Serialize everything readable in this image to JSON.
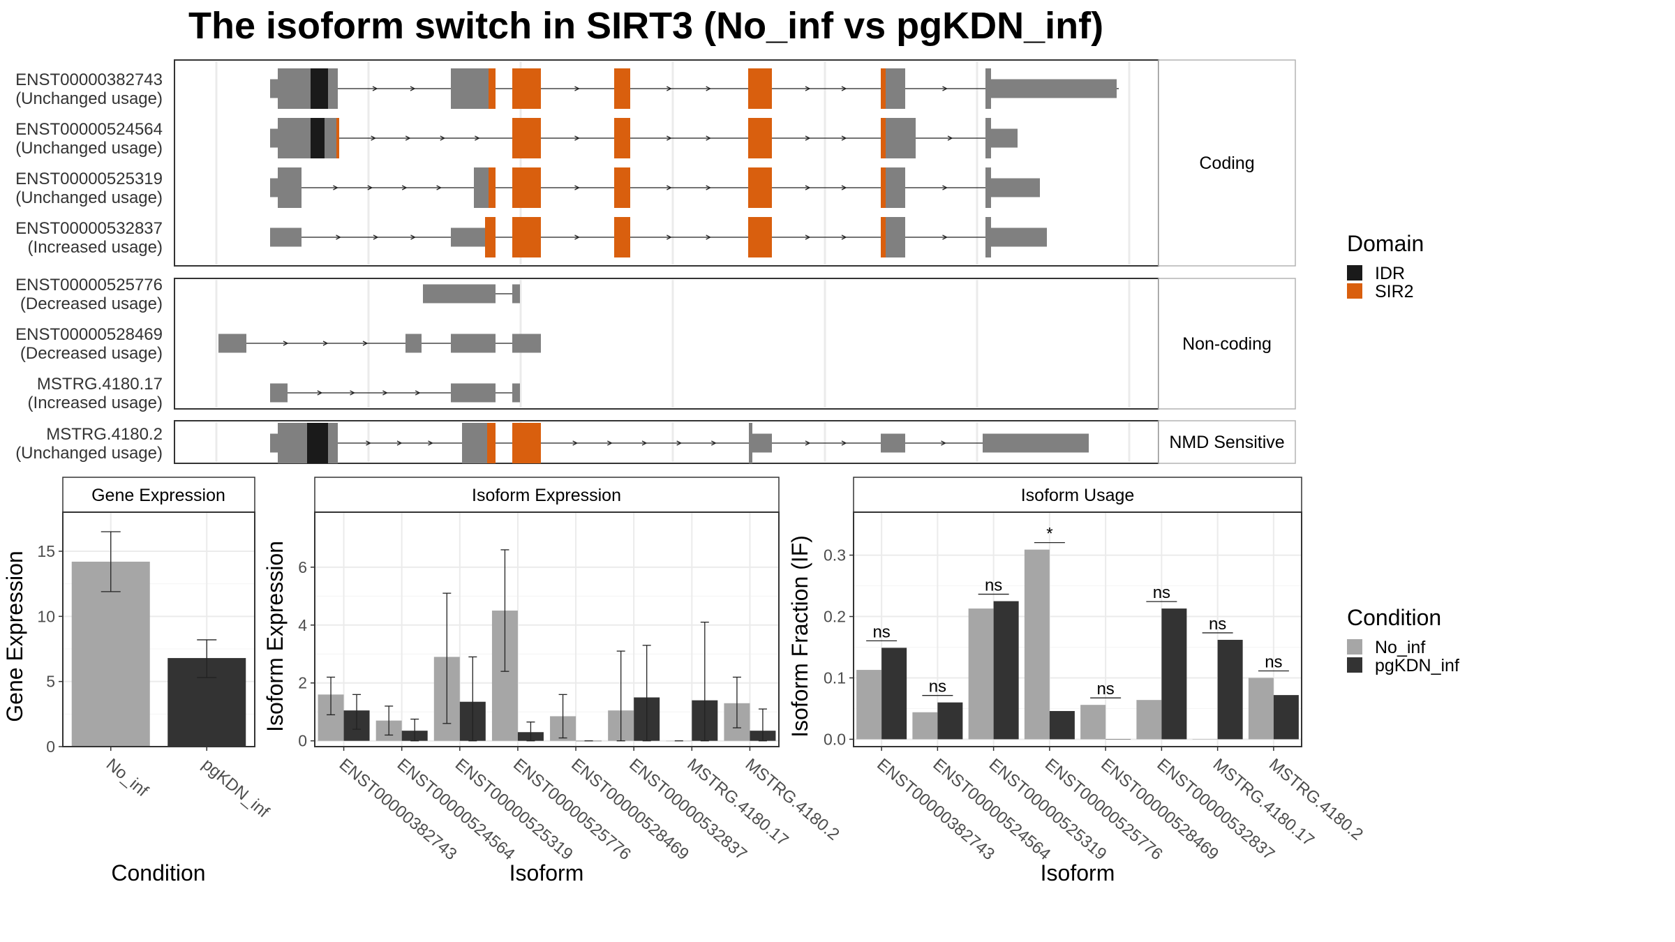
{
  "title": "The isoform switch in SIRT3 (No_inf vs pgKDN_inf)",
  "legends": {
    "domain": {
      "title": "Domain",
      "items": [
        {
          "label": "IDR",
          "color": "#1a1a1a"
        },
        {
          "label": "SIR2",
          "color": "#d95f0e"
        }
      ]
    },
    "condition": {
      "title": "Condition",
      "items": [
        {
          "label": "No_inf",
          "color": "#a6a6a6"
        },
        {
          "label": "pgKDN_inf",
          "color": "#333333"
        }
      ]
    }
  },
  "panels": {
    "coding": "Coding",
    "noncoding": "Non-coding",
    "nmd": "NMD Sensitive",
    "gene_expression": "Gene Expression",
    "isoform_expression": "Isoform Expression",
    "isoform_usage": "Isoform Usage"
  },
  "axes": {
    "gene": {
      "xlabel": "Condition",
      "ylabel": "Gene Expression"
    },
    "isoform_expr": {
      "xlabel": "Isoform",
      "ylabel": "Isoform Expression"
    },
    "isoform_usage": {
      "xlabel": "Isoform",
      "ylabel": "Isoform Fraction (IF)"
    }
  },
  "transcripts": [
    {
      "id": "ENST00000382743",
      "usage": "(Unchanged usage)",
      "group": "coding"
    },
    {
      "id": "ENST00000524564",
      "usage": "(Unchanged usage)",
      "group": "coding"
    },
    {
      "id": "ENST00000525319",
      "usage": "(Unchanged usage)",
      "group": "coding"
    },
    {
      "id": "ENST00000532837",
      "usage": "(Increased usage)",
      "group": "coding"
    },
    {
      "id": "ENST00000525776",
      "usage": "(Decreased usage)",
      "group": "noncoding"
    },
    {
      "id": "ENST00000528469",
      "usage": "(Decreased usage)",
      "group": "noncoding"
    },
    {
      "id": "MSTRG.4180.17",
      "usage": "(Increased usage)",
      "group": "noncoding"
    },
    {
      "id": "MSTRG.4180.2",
      "usage": "(Unchanged usage)",
      "group": "nmd"
    }
  ],
  "chart_data": [
    {
      "type": "bar",
      "title": "Gene Expression",
      "xlabel": "Condition",
      "ylabel": "Gene Expression",
      "categories": [
        "No_inf",
        "pgKDN_inf"
      ],
      "values": [
        14.2,
        6.8
      ],
      "error_low": [
        11.9,
        5.3
      ],
      "error_high": [
        16.5,
        8.2
      ],
      "colors": [
        "#a6a6a6",
        "#333333"
      ],
      "ylim": [
        0,
        18
      ],
      "yticks": [
        0,
        5,
        10,
        15
      ]
    },
    {
      "type": "bar",
      "title": "Isoform Expression",
      "xlabel": "Isoform",
      "ylabel": "Isoform Expression",
      "categories": [
        "ENST00000382743",
        "ENST00000524564",
        "ENST00000525319",
        "ENST00000525776",
        "ENST00000528469",
        "ENST00000532837",
        "MSTRG.4180.17",
        "MSTRG.4180.2"
      ],
      "series": [
        {
          "name": "No_inf",
          "values": [
            1.6,
            0.7,
            2.9,
            4.5,
            0.85,
            1.05,
            0.0,
            1.3
          ],
          "error_low": [
            0.9,
            0.2,
            0.6,
            2.4,
            0.1,
            0.0,
            0.0,
            0.45
          ],
          "error_high": [
            2.2,
            1.2,
            5.1,
            6.6,
            1.6,
            3.1,
            0.0,
            2.2
          ]
        },
        {
          "name": "pgKDN_inf",
          "values": [
            1.05,
            0.35,
            1.35,
            0.3,
            0.0,
            1.5,
            1.4,
            0.35
          ],
          "error_low": [
            0.4,
            0.0,
            0.0,
            0.0,
            0.0,
            0.0,
            0.0,
            0.0
          ],
          "error_high": [
            1.6,
            0.75,
            2.9,
            0.65,
            0.0,
            3.3,
            4.1,
            1.1
          ]
        }
      ],
      "ylim": [
        -0.2,
        7.9
      ],
      "yticks": [
        0,
        2,
        4,
        6
      ]
    },
    {
      "type": "bar",
      "title": "Isoform Usage",
      "xlabel": "Isoform",
      "ylabel": "Isoform Fraction (IF)",
      "categories": [
        "ENST00000382743",
        "ENST00000524564",
        "ENST00000525319",
        "ENST00000525776",
        "ENST00000528469",
        "ENST00000532837",
        "MSTRG.4180.17",
        "MSTRG.4180.2"
      ],
      "series": [
        {
          "name": "No_inf",
          "values": [
            0.113,
            0.044,
            0.213,
            0.309,
            0.056,
            0.064,
            0.0,
            0.1
          ]
        },
        {
          "name": "pgKDN_inf",
          "values": [
            0.149,
            0.06,
            0.225,
            0.046,
            0.0,
            0.213,
            0.162,
            0.072
          ]
        }
      ],
      "significance": [
        "ns",
        "ns",
        "ns",
        "*",
        "ns",
        "ns",
        "ns",
        "ns"
      ],
      "ylim": [
        -0.012,
        0.37
      ],
      "yticks": [
        0.0,
        0.1,
        0.2,
        0.3
      ],
      "ytick_labels": [
        "0.0",
        "0.1",
        "0.2",
        "0.3"
      ]
    }
  ]
}
